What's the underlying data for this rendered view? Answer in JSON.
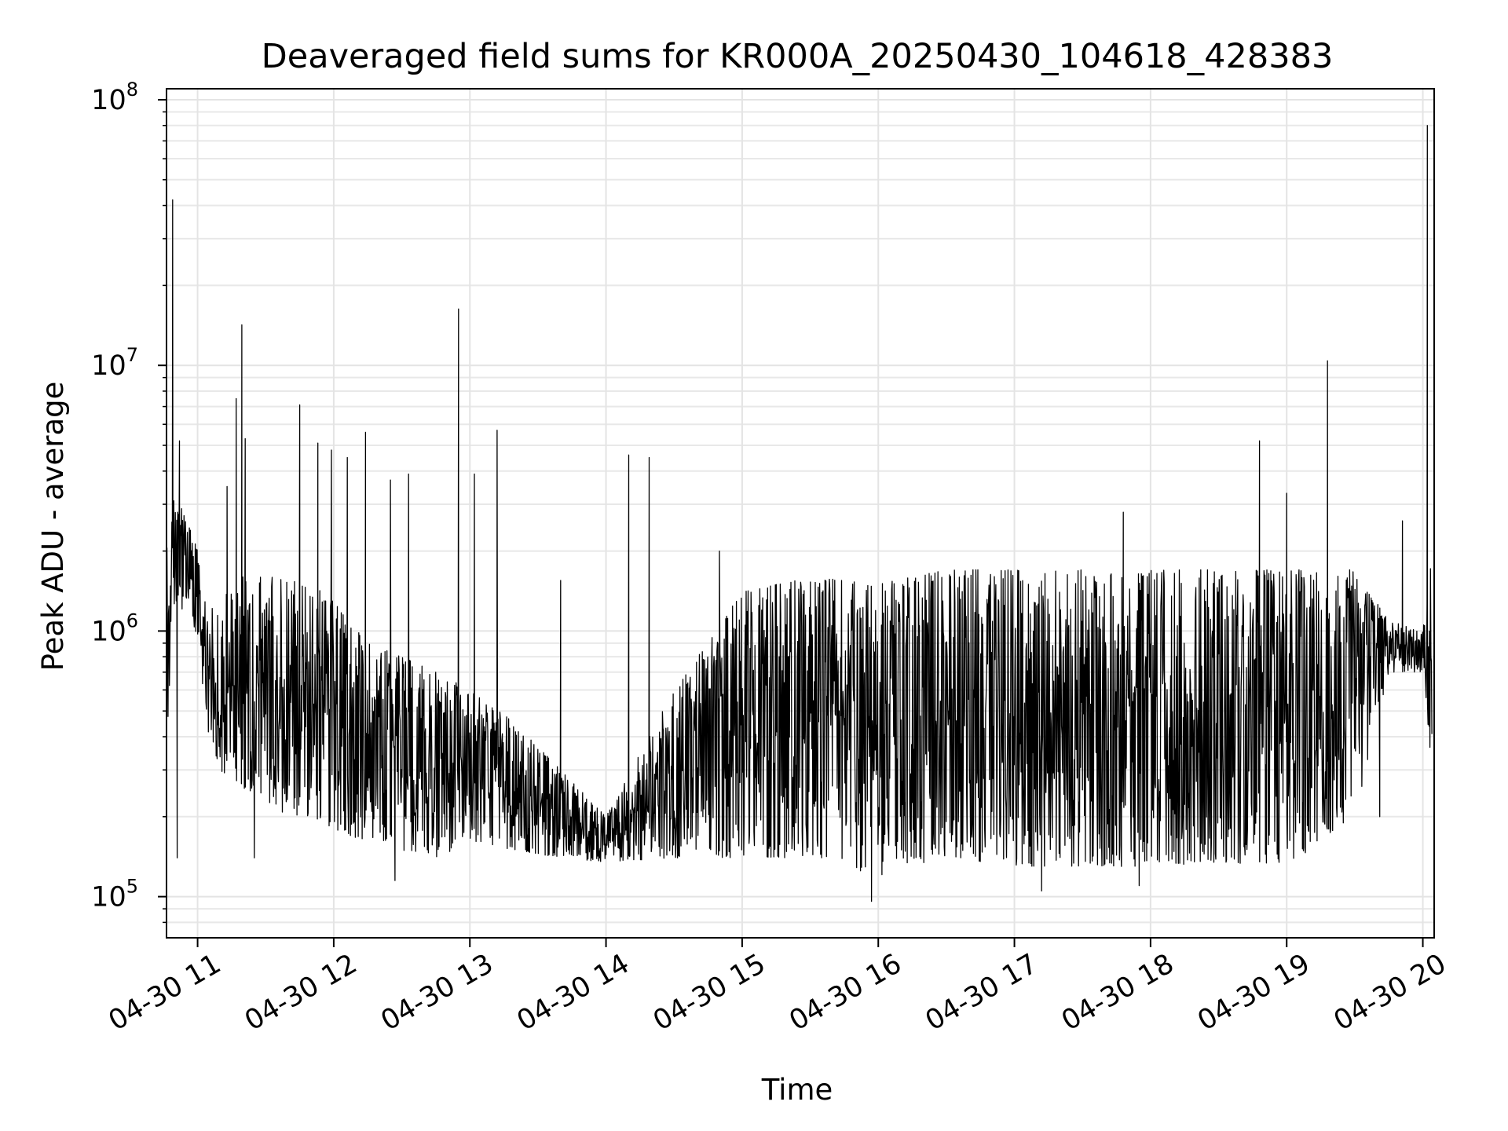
{
  "chart_data": {
    "type": "line",
    "title": "Deaveraged field sums for KR000A_20250430_104618_428383",
    "xlabel": "Time",
    "ylabel": "Peak ADU - average",
    "yscale": "log",
    "ylim": [
      70000,
      110000000
    ],
    "xlim": [
      "2025-04-30T10:46:18",
      "2025-04-30T20:05:00"
    ],
    "x_tick_labels": [
      "04-30 11",
      "04-30 12",
      "04-30 13",
      "04-30 14",
      "04-30 15",
      "04-30 16",
      "04-30 17",
      "04-30 18",
      "04-30 19",
      "04-30 20"
    ],
    "y_tick_labels": [
      {
        "base": "10",
        "exp": "5"
      },
      {
        "base": "10",
        "exp": "6"
      },
      {
        "base": "10",
        "exp": "7"
      },
      {
        "base": "10",
        "exp": "8"
      }
    ],
    "grid": true,
    "line_color": "#000000",
    "series": [
      {
        "x": [
          "2025-04-30T10:46:18",
          "2025-04-30T10:50:00",
          "2025-04-30T10:55:00",
          "2025-04-30T11:00:00",
          "2025-04-30T11:05:00",
          "2025-04-30T11:10:00",
          "2025-04-30T11:20:00",
          "2025-04-30T11:30:00",
          "2025-04-30T11:40:00",
          "2025-04-30T11:50:00",
          "2025-04-30T12:00:00",
          "2025-04-30T12:15:00",
          "2025-04-30T12:30:00",
          "2025-04-30T12:45:00",
          "2025-04-30T13:00:00",
          "2025-04-30T13:20:00",
          "2025-04-30T13:40:00",
          "2025-04-30T14:00:00",
          "2025-04-30T14:30:00",
          "2025-04-30T15:00:00",
          "2025-04-30T15:30:00",
          "2025-04-30T16:00:00",
          "2025-04-30T16:30:00",
          "2025-04-30T17:00:00",
          "2025-04-30T17:30:00",
          "2025-04-30T18:00:00",
          "2025-04-30T18:30:00",
          "2025-04-30T19:00:00",
          "2025-04-30T19:30:00",
          "2025-04-30T19:45:00",
          "2025-04-30T20:00:00",
          "2025-04-30T20:04:00"
        ],
        "low": [
          380000,
          1300000,
          1100000,
          900000,
          400000,
          300000,
          250000,
          230000,
          200000,
          200000,
          180000,
          160000,
          150000,
          140000,
          160000,
          150000,
          140000,
          135000,
          140000,
          140000,
          140000,
          120000,
          140000,
          130000,
          130000,
          130000,
          135000,
          130000,
          200000,
          700000,
          700000,
          300000
        ],
        "high": [
          2500000,
          3500000,
          2700000,
          2000000,
          1200000,
          1300000,
          1600000,
          1600000,
          1600000,
          1500000,
          1300000,
          900000,
          800000,
          700000,
          600000,
          450000,
          300000,
          200000,
          600000,
          1400000,
          1600000,
          1500000,
          1700000,
          1700000,
          1700000,
          1700000,
          1700000,
          1700000,
          1700000,
          1100000,
          1000000,
          2000000
        ],
        "spikes": [
          {
            "x": "2025-04-30T10:49:00",
            "y": 42000000
          },
          {
            "x": "2025-04-30T10:52:00",
            "y": 5200000
          },
          {
            "x": "2025-04-30T11:13:00",
            "y": 3500000
          },
          {
            "x": "2025-04-30T11:17:00",
            "y": 7500000
          },
          {
            "x": "2025-04-30T11:19:30",
            "y": 14200000
          },
          {
            "x": "2025-04-30T11:21:00",
            "y": 5300000
          },
          {
            "x": "2025-04-30T11:45:00",
            "y": 7100000
          },
          {
            "x": "2025-04-30T11:53:00",
            "y": 5100000
          },
          {
            "x": "2025-04-30T11:59:00",
            "y": 4800000
          },
          {
            "x": "2025-04-30T12:06:00",
            "y": 4500000
          },
          {
            "x": "2025-04-30T12:14:00",
            "y": 5600000
          },
          {
            "x": "2025-04-30T12:25:00",
            "y": 3700000
          },
          {
            "x": "2025-04-30T12:33:00",
            "y": 3900000
          },
          {
            "x": "2025-04-30T12:55:00",
            "y": 16300000
          },
          {
            "x": "2025-04-30T13:02:00",
            "y": 3900000
          },
          {
            "x": "2025-04-30T13:12:00",
            "y": 5700000
          },
          {
            "x": "2025-04-30T13:40:00",
            "y": 1550000
          },
          {
            "x": "2025-04-30T14:10:00",
            "y": 4600000
          },
          {
            "x": "2025-04-30T14:19:00",
            "y": 4500000
          },
          {
            "x": "2025-04-30T14:50:00",
            "y": 2000000
          },
          {
            "x": "2025-04-30T17:48:00",
            "y": 2800000
          },
          {
            "x": "2025-04-30T18:48:00",
            "y": 5200000
          },
          {
            "x": "2025-04-30T19:00:00",
            "y": 3300000
          },
          {
            "x": "2025-04-30T19:18:00",
            "y": 10400000
          },
          {
            "x": "2025-04-30T19:51:00",
            "y": 2600000
          },
          {
            "x": "2025-04-30T20:02:00",
            "y": 80000000
          }
        ],
        "dips": [
          {
            "x": "2025-04-30T10:51:00",
            "y": 140000
          },
          {
            "x": "2025-04-30T11:25:00",
            "y": 140000
          },
          {
            "x": "2025-04-30T12:27:00",
            "y": 115000
          },
          {
            "x": "2025-04-30T15:57:00",
            "y": 96000
          },
          {
            "x": "2025-04-30T17:12:00",
            "y": 105000
          },
          {
            "x": "2025-04-30T17:55:00",
            "y": 110000
          },
          {
            "x": "2025-04-30T19:41:00",
            "y": 200000
          }
        ]
      }
    ]
  }
}
